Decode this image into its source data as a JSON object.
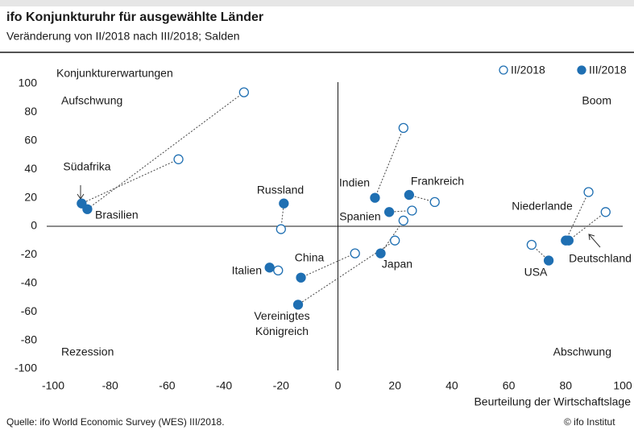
{
  "chart_data": {
    "type": "scatter",
    "title": "ifo Konjunkturuhr für ausgewählte Länder",
    "subtitle": "Veränderung von II/2018 nach III/2018; Salden",
    "y_label": "Konjunkturerwartungen",
    "x_label": "Beurteilung der Wirtschaftslage",
    "quadrants": [
      "Aufschwung",
      "Boom",
      "Rezession",
      "Abschwung"
    ],
    "source": "Quelle: ifo World Economic Survey (WES) III/2018.",
    "copyright": "© ifo Institut",
    "xlim": [
      -100,
      100
    ],
    "ylim": [
      -100,
      100
    ],
    "xticks": [
      -100,
      -80,
      -60,
      -40,
      -20,
      0,
      20,
      40,
      60,
      80,
      100
    ],
    "yticks": [
      -100,
      -80,
      -60,
      -40,
      -20,
      0,
      20,
      40,
      60,
      80,
      100
    ],
    "categories": [
      "Südafrika",
      "Brasilien",
      "Russland",
      "Italien",
      "China",
      "Vereinigtes Königreich",
      "Japan",
      "Indien",
      "Frankreich",
      "Spanien",
      "Niederlande",
      "Deutschland",
      "USA"
    ],
    "series": [
      {
        "name": "II/2018",
        "color": "#1f6fb2",
        "filled": false,
        "x": [
          -56,
          -33,
          -20,
          -21,
          6,
          20,
          23,
          23,
          34,
          26,
          88,
          94,
          68
        ],
        "y": [
          47,
          94,
          -2,
          -31,
          -19,
          -10,
          4,
          69,
          17,
          11,
          24,
          10,
          -13
        ]
      },
      {
        "name": "III/2018",
        "color": "#1f6fb2",
        "filled": true,
        "x": [
          -90,
          -88,
          -19,
          -24,
          -13,
          -14,
          15,
          13,
          25,
          18,
          80,
          81,
          74
        ],
        "y": [
          16,
          12,
          16,
          -29,
          -36,
          -55,
          -19,
          20,
          22,
          10,
          -10,
          -10,
          -24
        ]
      }
    ]
  }
}
